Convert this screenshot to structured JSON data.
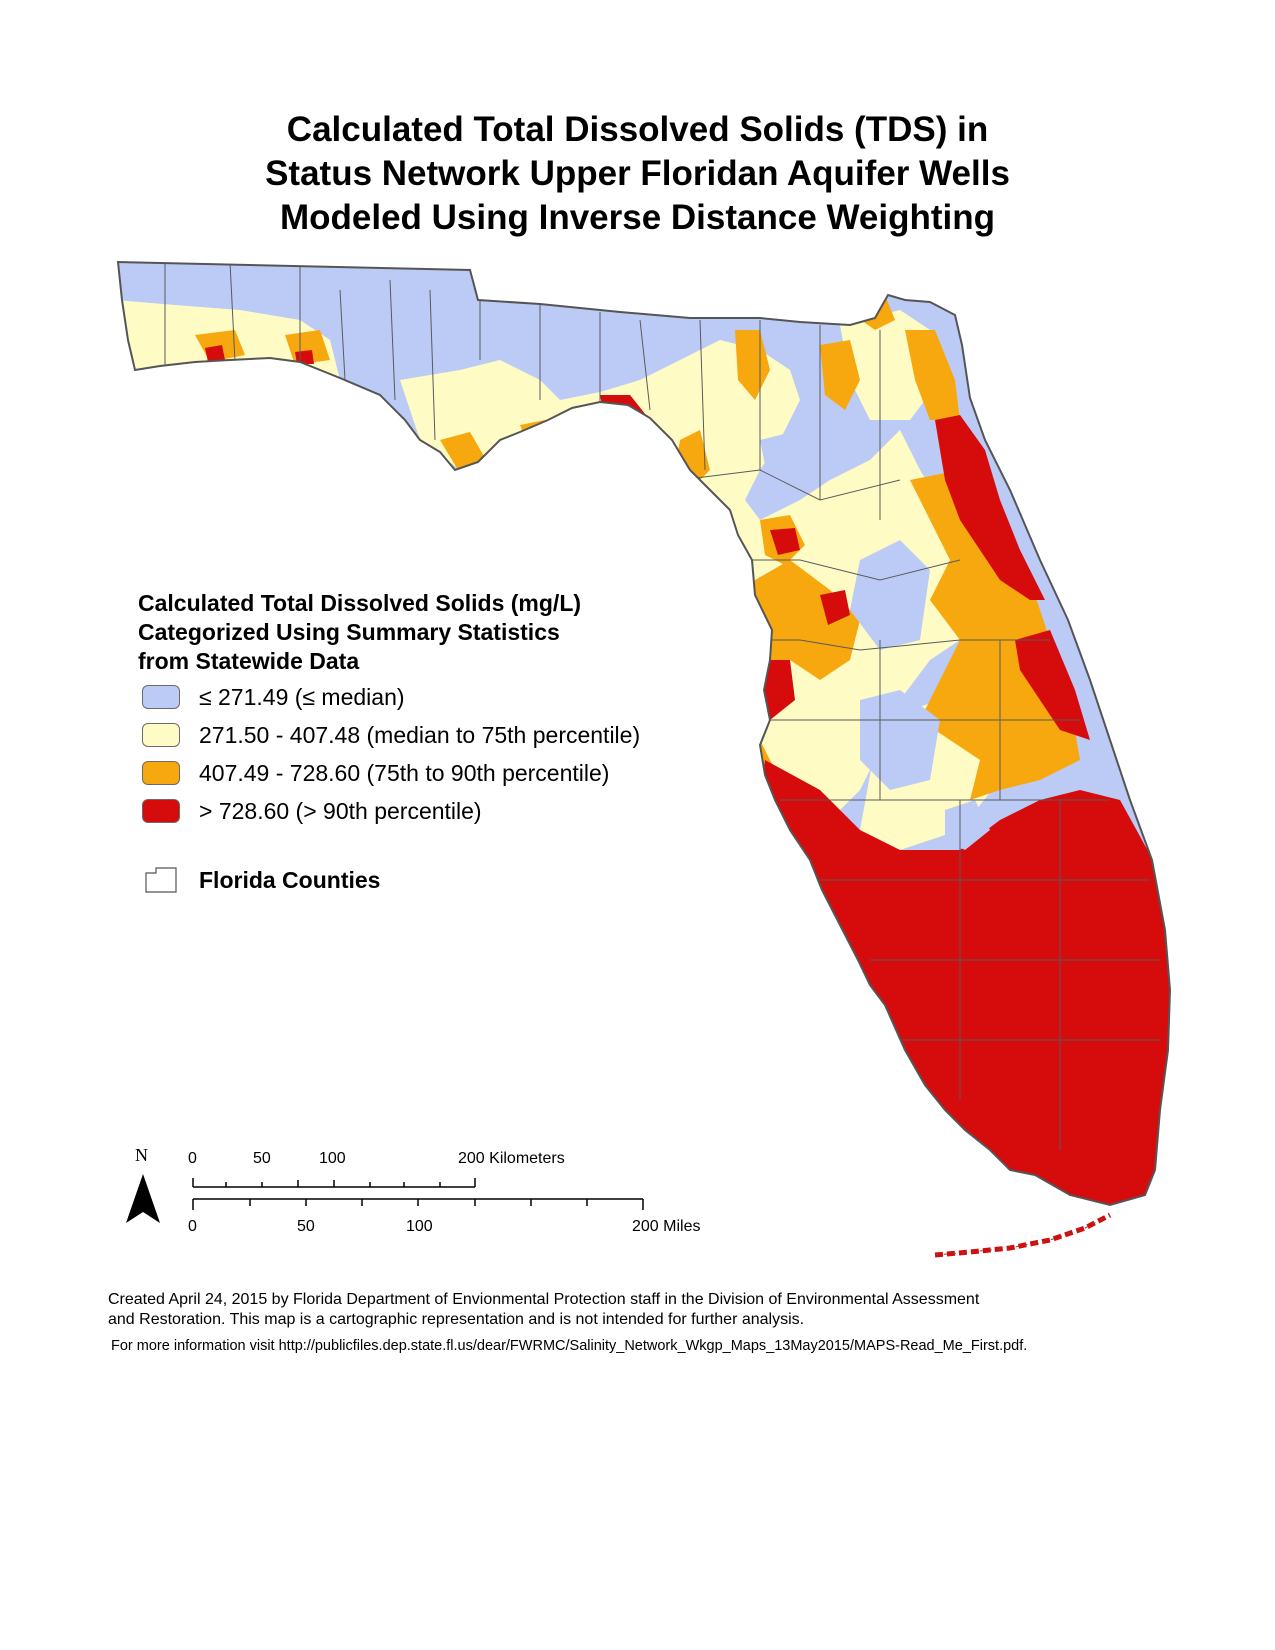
{
  "title": {
    "line1": "Calculated Total Dissolved Solids (TDS) in",
    "line2": "Status Network Upper Floridan Aquifer Wells",
    "line3": "Modeled Using Inverse Distance Weighting"
  },
  "legend": {
    "heading1": "Calculated Total Dissolved Solids (mg/L)",
    "heading2": "Categorized Using Summary Statistics",
    "heading3": "from Statewide Data",
    "classes": [
      {
        "label": "≤ 271.49 (≤ median)",
        "color": "#bccbf5"
      },
      {
        "label": "271.50 - 407.48 (median to 75th percentile)",
        "color": "#fefcc4"
      },
      {
        "label": "407.49 - 728.60 (75th to 90th percentile)",
        "color": "#f8a80f"
      },
      {
        "label": "> 728.60 (> 90th percentile)",
        "color": "#d60c0c"
      }
    ],
    "counties_label": "Florida Counties"
  },
  "north_arrow": {
    "label": "N"
  },
  "scale": {
    "km_ticks": [
      "0",
      "50",
      "100"
    ],
    "km_end_label": "200 Kilometers",
    "mi_ticks": [
      "0",
      "50",
      "100"
    ],
    "mi_end_label": "200 Miles"
  },
  "credit": {
    "line1": "Created April 24, 2015 by Florida Department of Envionmental Protection staff in the Division of Environmental Assessment",
    "line2": "and Restoration.  This map is a cartographic representation and is not intended for further analysis.",
    "more_info": "For more information visit http://publicfiles.dep.state.fl.us/dear/FWRMC/Salinity_Network_Wkgp_Maps_13May2015/MAPS-Read_Me_First.pdf."
  },
  "colors": {
    "low": "#bccbf5",
    "mid": "#fefcc4",
    "high": "#f8a80f",
    "very_high": "#d60c0c",
    "county_lines": "#5a5a5a"
  }
}
